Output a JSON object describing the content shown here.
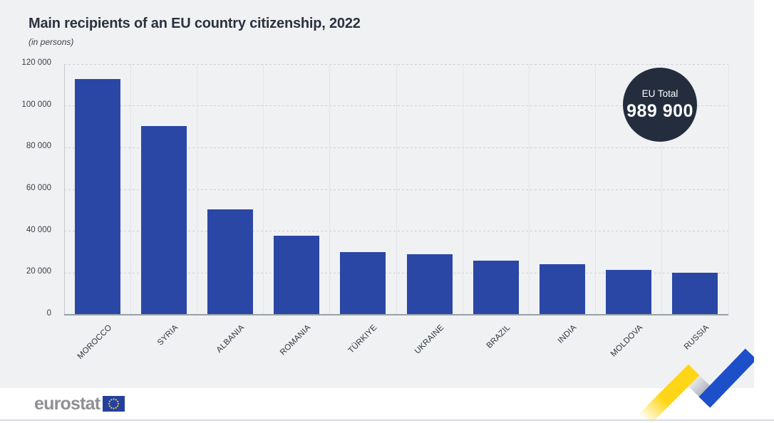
{
  "header": {
    "title": "Main recipients of an EU country citizenship, 2022",
    "subtitle": "(in persons)"
  },
  "badge": {
    "label": "EU Total",
    "value": "989 900"
  },
  "chart_data": {
    "type": "bar",
    "title": "Main recipients of an EU country citizenship, 2022",
    "subtitle": "(in persons)",
    "categories": [
      "MOROCCO",
      "SYRIA",
      "ALBANIA",
      "ROMANIA",
      "TÜRKIYE",
      "UKRAINE",
      "BRAZIL",
      "INDIA",
      "MOLDOVA",
      "RUSSIA"
    ],
    "values": [
      112700,
      90400,
      50300,
      37700,
      30000,
      29100,
      26000,
      24300,
      21400,
      20200
    ],
    "xlabel": "",
    "ylabel": "",
    "ylim": [
      0,
      120000
    ],
    "yticks": [
      0,
      20000,
      40000,
      60000,
      80000,
      100000,
      120000
    ],
    "ytick_labels": [
      "0",
      "20 000",
      "40 000",
      "60 000",
      "80 000",
      "100 000",
      "120 000"
    ],
    "grid": "horizontal-dashed, vertical-solid column separators",
    "legend": "none",
    "annotation": {
      "label": "EU Total",
      "value": "989 900"
    },
    "bar_color": "#2a47a6"
  },
  "footer": {
    "logo_text": "eurostat"
  },
  "colors": {
    "panel_background": "#f0f1f3",
    "bar": "#2a47a6",
    "badge_background": "#232d3d",
    "badge_text": "#ffffff",
    "title_text": "#2b3240",
    "ribbon_yellow": "#ffd617",
    "ribbon_blue": "#1d4fc9",
    "eu_flag_blue": "#24409f",
    "eu_flag_stars": "#ffcc00"
  },
  "icons": {
    "eu_flag": "eu-flag-icon",
    "ribbon": "eurostat-ribbon-decoration"
  }
}
